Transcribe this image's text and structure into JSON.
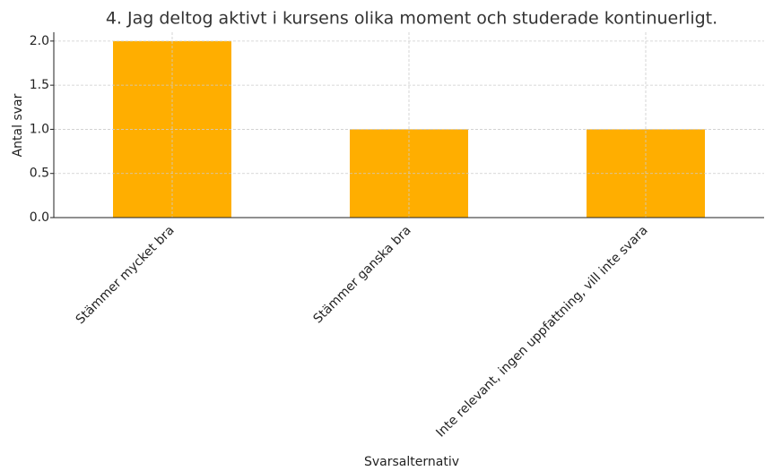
{
  "chart_data": {
    "type": "bar",
    "title": "4. Jag deltog aktivt i kursens olika moment och studerade kontinuerligt.",
    "xlabel": "Svarsalternativ",
    "ylabel": "Antal svar",
    "categories": [
      "Stämmer mycket bra",
      "Stämmer ganska bra",
      "Inte relevant, ingen uppfattning, vill inte svara"
    ],
    "values": [
      2,
      1,
      1
    ],
    "color": "#ffae00",
    "ylim": [
      0,
      2.1
    ],
    "yticks": [
      {
        "value": 0,
        "label": "0.0"
      },
      {
        "value": 0.5,
        "label": "0.5"
      },
      {
        "value": 1,
        "label": "1.0"
      },
      {
        "value": 1.5,
        "label": "1.5"
      },
      {
        "value": 2,
        "label": "2.0"
      }
    ],
    "grid": true
  }
}
